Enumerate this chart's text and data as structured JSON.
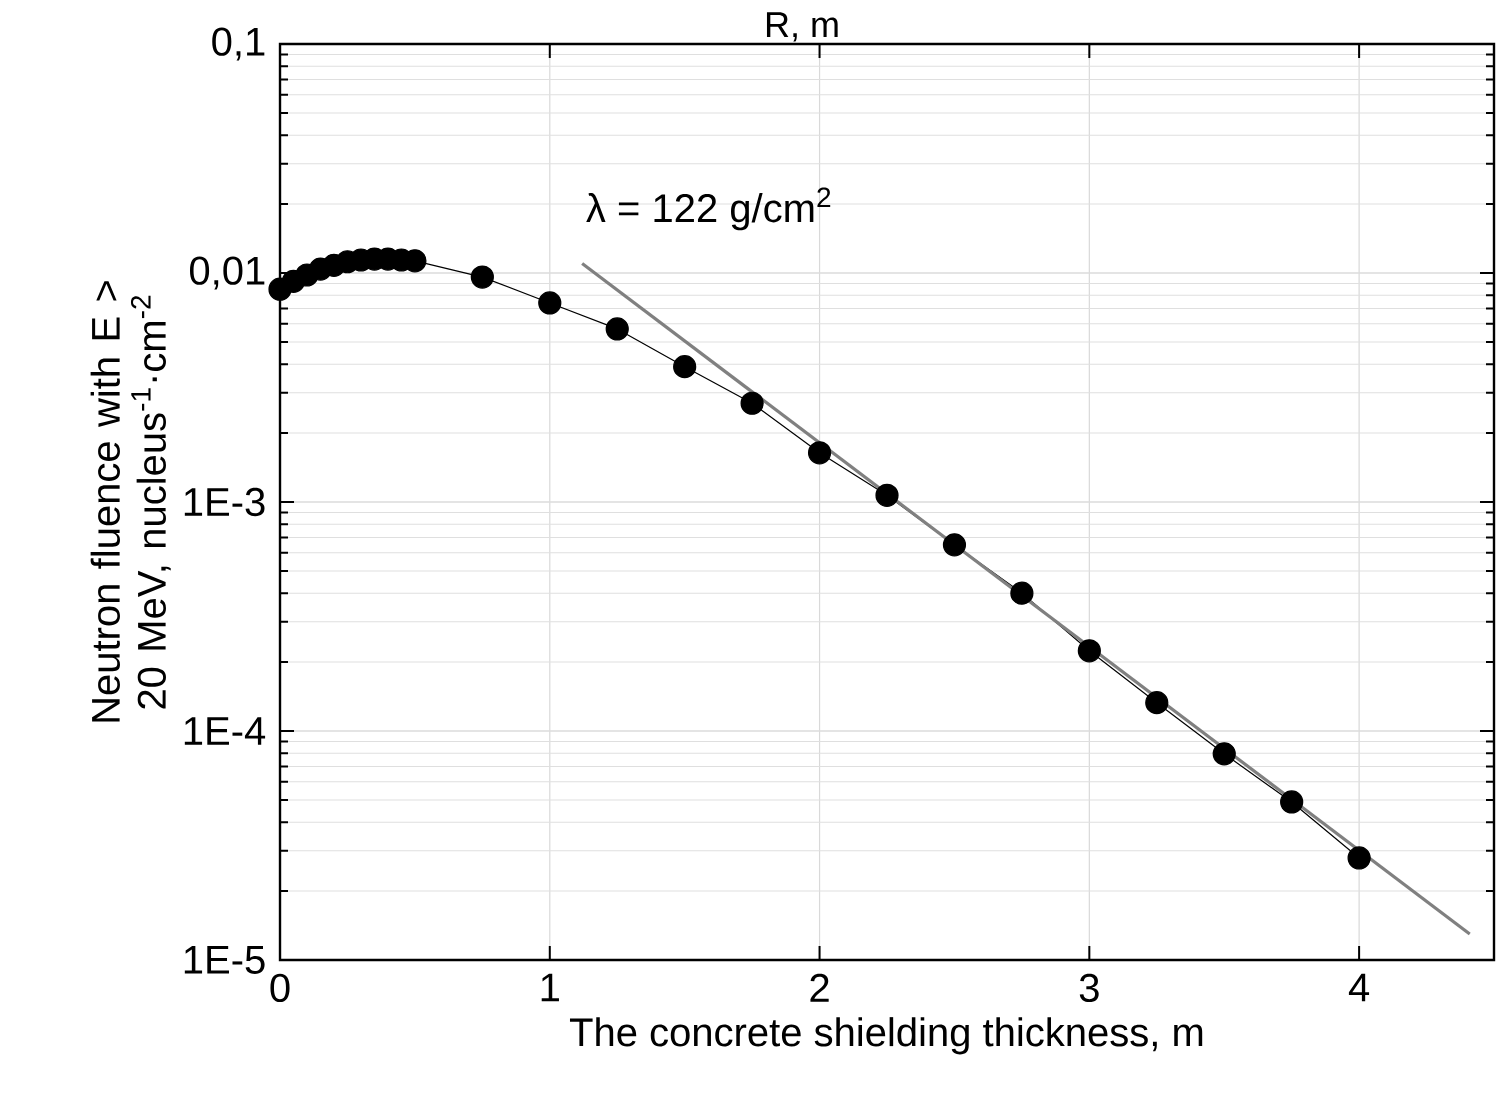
{
  "chart_data": {
    "type": "line",
    "xlabel": "The concrete shielding thickness, m",
    "ylabel": "Neutron fluence with E > 20 MeV, nucleus$^{-1}$·cm$^{-2}$",
    "annotations": [
      "R, m",
      "λ = 122 g/cm$^{2}$"
    ],
    "log": "y",
    "grid": true,
    "marker": "circle",
    "line_style": "solid",
    "xlim": [
      0,
      4.5
    ],
    "ylim": [
      1e-05,
      0.1
    ],
    "xticks": [
      0,
      1,
      2,
      3,
      4
    ],
    "yticks": [
      {
        "value": 1e-05,
        "label": "1E-5"
      },
      {
        "value": 0.0001,
        "label": "1E-4"
      },
      {
        "value": 0.001,
        "label": "1E-3"
      },
      {
        "value": 0.01,
        "label": "0,01"
      },
      {
        "value": 0.1,
        "label": "0,1"
      }
    ],
    "series": [
      {
        "color": "#000000",
        "x": [
          0,
          0.05,
          0.1,
          0.15,
          0.2,
          0.25,
          0.3,
          0.35,
          0.4,
          0.45,
          0.5,
          0.75,
          1.0,
          1.25,
          1.5,
          1.75,
          2.0,
          2.25,
          2.5,
          2.75,
          3.0,
          3.25,
          3.5,
          3.75,
          4.0
        ],
        "values": [
          0.0085,
          0.0092,
          0.0098,
          0.0104,
          0.0108,
          0.0112,
          0.0114,
          0.0115,
          0.0115,
          0.0114,
          0.0113,
          0.0096,
          0.0074,
          0.0057,
          0.0039,
          0.0027,
          0.00164,
          0.00107,
          0.00065,
          0.0004,
          0.000224,
          0.000133,
          7.95e-05,
          4.9e-05,
          2.79e-05
        ]
      },
      {
        "type": "line",
        "marker": "none",
        "color": "#808080",
        "x": [
          1.12,
          4.41
        ],
        "values": [
          0.011,
          1.3e-05
        ]
      }
    ]
  }
}
